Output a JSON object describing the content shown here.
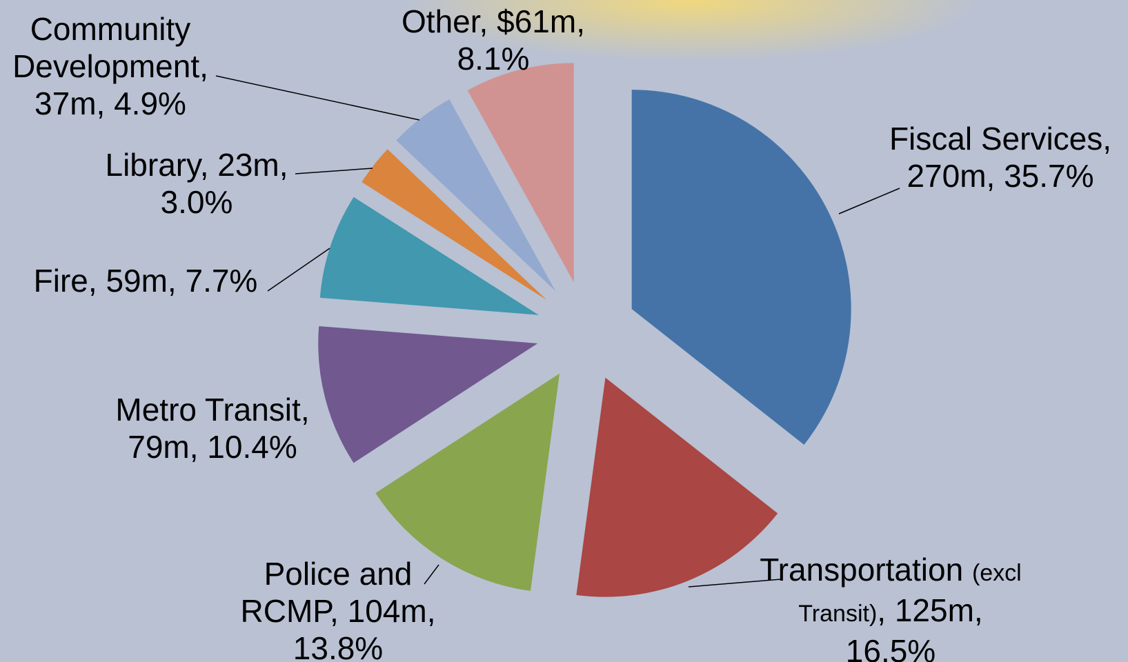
{
  "chart_data": {
    "type": "pie",
    "categories": [
      "Fiscal Services",
      "Transportation",
      "Police and RCMP",
      "Metro Transit",
      "Fire",
      "Library",
      "Community Development",
      "Other"
    ],
    "category_notes": [
      null,
      "(excl Transit)",
      null,
      null,
      null,
      null,
      null,
      null
    ],
    "values": [
      270,
      125,
      104,
      79,
      59,
      23,
      37,
      61
    ],
    "value_labels": [
      "270m",
      "125m",
      "104m",
      "79m",
      "59m",
      "23m",
      "37m",
      "$61m"
    ],
    "percent_labels": [
      "35.7%",
      "16.5%",
      "13.8%",
      "10.4%",
      "7.7%",
      "3.0%",
      "4.9%",
      "8.1%"
    ],
    "colors": [
      "#4573a7",
      "#aa4643",
      "#89a54e",
      "#71588f",
      "#4198af",
      "#db843d",
      "#93a9cf",
      "#d19392"
    ]
  }
}
